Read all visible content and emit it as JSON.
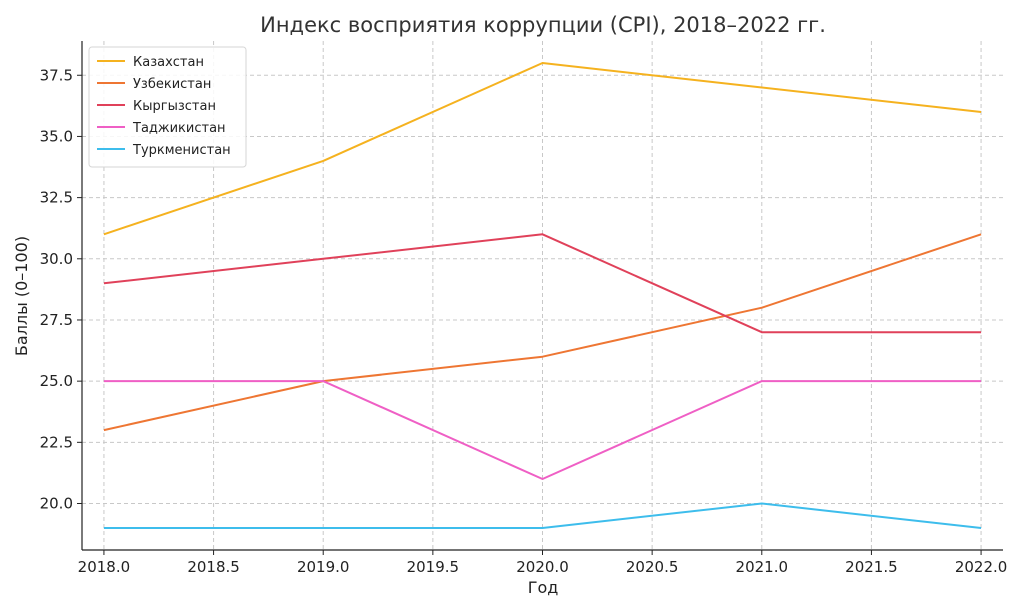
{
  "chart_data": {
    "type": "line",
    "title": "Индекс восприятия коррупции (CPI), 2018–2022 гг.",
    "xlabel": "Год",
    "ylabel": "Баллы (0–100)",
    "x": [
      2018,
      2019,
      2020,
      2021,
      2022
    ],
    "xlim": [
      2017.9,
      2022.1
    ],
    "ylim": [
      18.1,
      38.9
    ],
    "xticks": [
      "2018.0",
      "2018.5",
      "2019.0",
      "2019.5",
      "2020.0",
      "2020.5",
      "2021.0",
      "2021.5",
      "2022.0"
    ],
    "yticks": [
      "20.0",
      "22.5",
      "25.0",
      "27.5",
      "30.0",
      "32.5",
      "35.0",
      "37.5"
    ],
    "grid": true,
    "legend_position": "top-left",
    "series": [
      {
        "name": "Казахстан",
        "color": "#f5b21f",
        "values": [
          31,
          34,
          38,
          37,
          36
        ]
      },
      {
        "name": "Узбекистан",
        "color": "#ee7633",
        "values": [
          23,
          25,
          26,
          28,
          31
        ]
      },
      {
        "name": "Кыргызстан",
        "color": "#e0415a",
        "values": [
          29,
          30,
          31,
          27,
          27
        ]
      },
      {
        "name": "Таджикистан",
        "color": "#ef5fc5",
        "values": [
          25,
          25,
          21,
          25,
          25
        ]
      },
      {
        "name": "Туркменистан",
        "color": "#3dbdec",
        "values": [
          19,
          19,
          19,
          20,
          19
        ]
      }
    ]
  }
}
